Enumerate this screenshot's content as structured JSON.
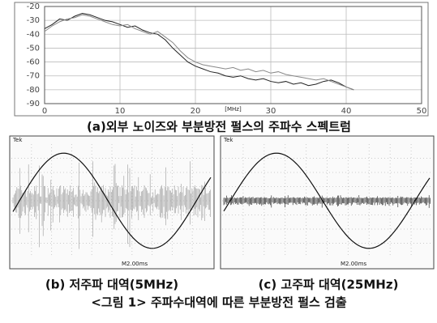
{
  "chart_data": {
    "type": "line",
    "xlabel": "[MHz]",
    "x": [
      0,
      1,
      2,
      3,
      4,
      5,
      6,
      7,
      8,
      9,
      10,
      11,
      12,
      13,
      14,
      15,
      16,
      17,
      18,
      19,
      20,
      21,
      22,
      23,
      24,
      25,
      26,
      27,
      28,
      29,
      30,
      31,
      32,
      33,
      34,
      35,
      36,
      37,
      38,
      39,
      40,
      41
    ],
    "series": [
      {
        "color": "#222222",
        "values": [
          -36,
          -33,
          -29,
          -30,
          -27,
          -25,
          -26,
          -28,
          -30,
          -31,
          -33,
          -35,
          -34,
          -37,
          -39,
          -40,
          -44,
          -50,
          -55,
          -60,
          -63,
          -65,
          -67,
          -68,
          -70,
          -71,
          -70,
          -72,
          -73,
          -72,
          -74,
          -75,
          -74,
          -76,
          -75,
          -77,
          -76,
          -74,
          -73,
          -75,
          -78,
          -80
        ]
      },
      {
        "color": "#888888",
        "values": [
          -38,
          -34,
          -31,
          -29,
          -28,
          -26,
          -27,
          -29,
          -31,
          -33,
          -34,
          -33,
          -36,
          -38,
          -40,
          -38,
          -42,
          -46,
          -52,
          -57,
          -60,
          -62,
          -63,
          -64,
          -65,
          -64,
          -66,
          -65,
          -67,
          -66,
          -68,
          -67,
          -69,
          -70,
          -71,
          -72,
          -73,
          -72,
          -74,
          -76,
          -78,
          -80
        ]
      }
    ],
    "xlim": [
      0,
      50
    ],
    "xticks": [
      0,
      10,
      20,
      30,
      40,
      50
    ],
    "ylim": [
      -90,
      -20
    ],
    "yticks": [
      -20,
      -30,
      -40,
      -50,
      -60,
      -70,
      -80,
      -90
    ],
    "grid": true,
    "caption": "(a)외부 노이즈와 부분방전 펄스의 주파수 스펙트럼"
  },
  "scopes": [
    {
      "brand": "Tek",
      "timebase": "M2.00ms",
      "caption": "(b) 저주파 대역(5MHz)"
    },
    {
      "brand": "Tek",
      "timebase": "M2.00ms",
      "caption": "(c) 고주파 대역(25MHz)"
    }
  ],
  "figure_caption": "<그림 1> 주파수대역에 따른 부분방전 펄스 검출"
}
